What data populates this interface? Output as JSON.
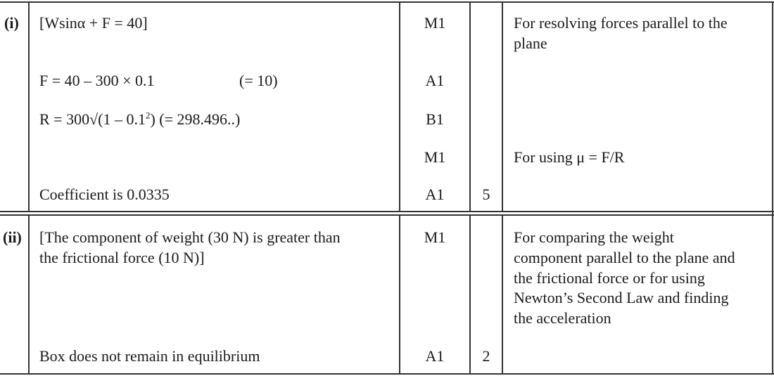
{
  "parts": [
    {
      "label": "(i)",
      "rows": [
        {
          "working": "[Wsinα + F = 40]",
          "mark": "M1",
          "total": "",
          "notes": [
            "For resolving forces parallel to the",
            "plane"
          ]
        },
        {
          "working": "F = 40 – 300 × 0.1",
          "working_aside": "(= 10)",
          "mark": "A1",
          "total": "",
          "notes": []
        },
        {
          "working_pre": "R = 300√(1 – 0.1",
          "working_sup": "2",
          "working_post": ")  (= 298.496..)",
          "mark": "B1",
          "total": "",
          "notes": []
        },
        {
          "working": "",
          "mark": "M1",
          "total": "",
          "notes": [
            "For using μ = F/R"
          ]
        },
        {
          "working": "Coefficient is 0.0335",
          "mark": "A1",
          "total": "5",
          "notes": []
        }
      ]
    },
    {
      "label": "(ii)",
      "rows": [
        {
          "working_lines": [
            "[The component of weight (30 N) is greater than",
            "the frictional force (10 N)]"
          ],
          "mark": "M1",
          "total": "",
          "notes": [
            "For comparing the weight",
            "component parallel to the plane and",
            "the frictional force or for using",
            "Newton’s Second Law and finding",
            "the acceleration"
          ]
        },
        {
          "working": "Box does not remain in equilibrium",
          "mark": "A1",
          "total": "2",
          "notes": []
        }
      ]
    }
  ]
}
